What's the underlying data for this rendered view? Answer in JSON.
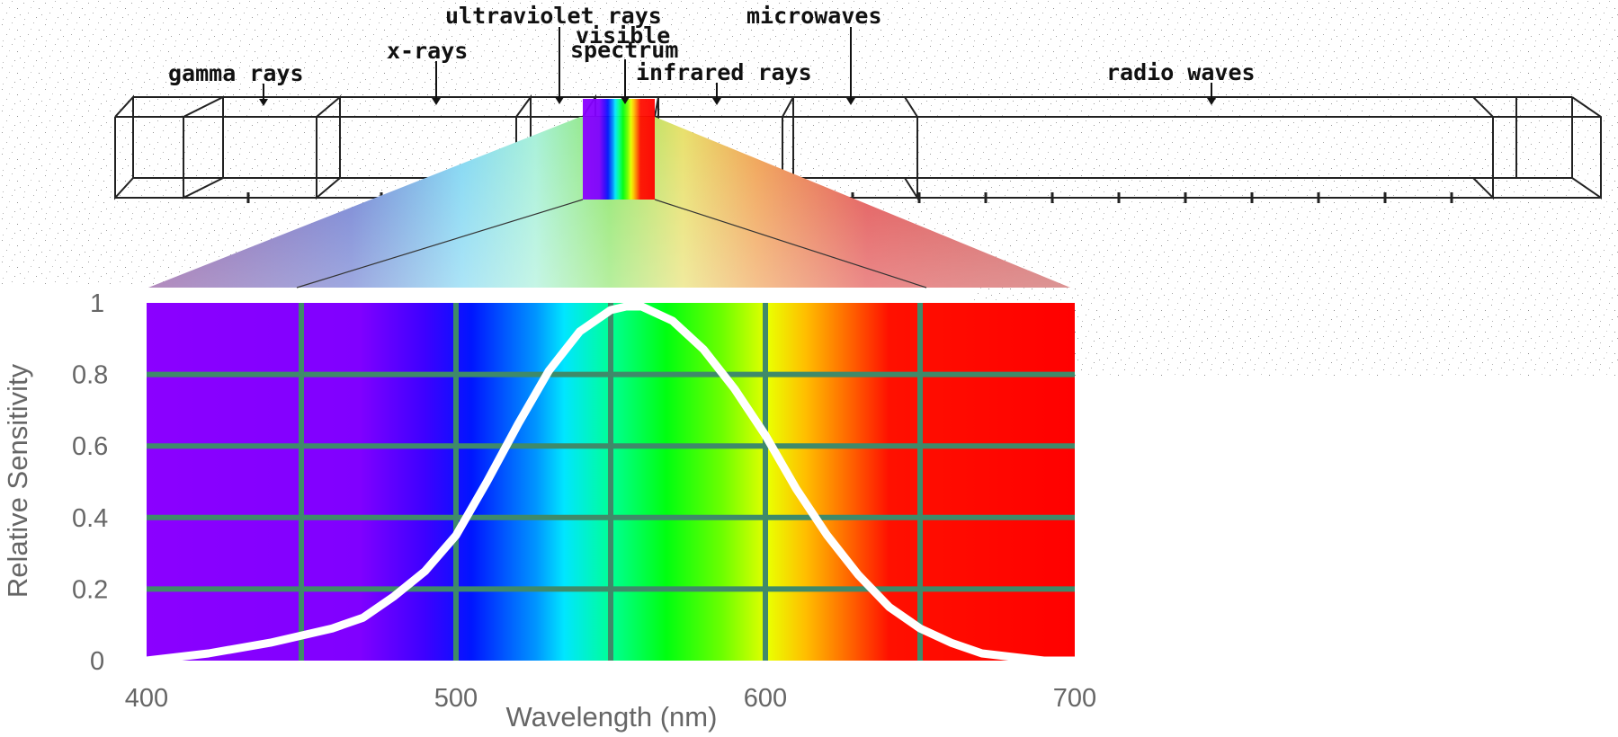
{
  "spectrum_bar": {
    "labels": {
      "gamma": "gamma rays",
      "xrays": "x-rays",
      "ultraviolet": "ultraviolet rays",
      "visible_line1": "visible",
      "visible_line2": "spectrum",
      "infrared": "infrared rays",
      "microwaves": "microwaves",
      "radio": "radio waves"
    }
  },
  "chart_data": {
    "type": "line",
    "xlabel": "Wavelength (nm)",
    "ylabel": "Relative Sensitivity",
    "xlim": [
      400,
      700
    ],
    "ylim": [
      0,
      1
    ],
    "x_ticks": [
      "400",
      "500",
      "600",
      "700"
    ],
    "y_ticks": [
      "0",
      "0.2",
      "0.4",
      "0.6",
      "0.8",
      "1"
    ],
    "grid": true,
    "gridlines_x": [
      450,
      500,
      550,
      600,
      650
    ],
    "gridlines_y": [
      0.2,
      0.4,
      0.6,
      0.8
    ],
    "background": "visible spectrum color gradient",
    "series": [
      {
        "color": "#ffffff",
        "x": [
          400,
          420,
          440,
          460,
          470,
          480,
          490,
          500,
          510,
          520,
          530,
          540,
          550,
          555,
          560,
          570,
          580,
          590,
          600,
          610,
          620,
          630,
          640,
          650,
          660,
          670,
          680,
          690,
          700
        ],
        "y": [
          0.0,
          0.02,
          0.05,
          0.09,
          0.12,
          0.18,
          0.25,
          0.35,
          0.5,
          0.66,
          0.81,
          0.92,
          0.98,
          0.99,
          0.99,
          0.95,
          0.87,
          0.76,
          0.63,
          0.48,
          0.35,
          0.24,
          0.15,
          0.09,
          0.05,
          0.02,
          0.01,
          0.0,
          0.0
        ]
      }
    ]
  }
}
